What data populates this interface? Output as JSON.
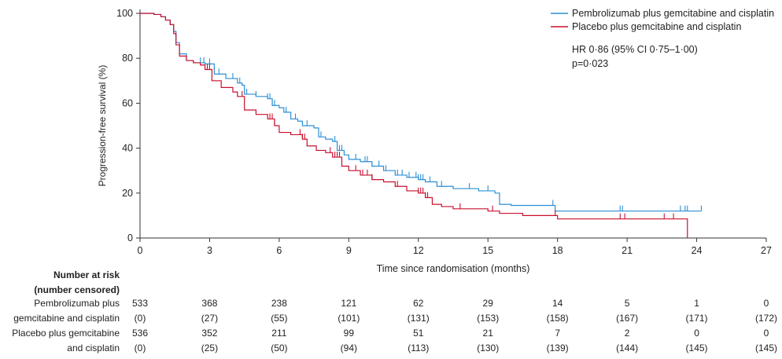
{
  "chart_data": {
    "type": "line",
    "ylabel": "Progression-free survival (%)",
    "xlabel": "Time since randomisation (months)",
    "xlim": [
      0,
      27
    ],
    "ylim": [
      0,
      100
    ],
    "xticks": [
      "0",
      "3",
      "6",
      "9",
      "12",
      "15",
      "18",
      "21",
      "24",
      "27"
    ],
    "yticks": [
      "0",
      "20",
      "40",
      "60",
      "80",
      "100"
    ],
    "legend_position": "top-right",
    "annotation_lines": [
      "HR 0·86 (95% CI 0·75–1·00)",
      "p=0·023"
    ],
    "series": [
      {
        "name": "Pembrolizumab plus gemcitabine and cisplatin",
        "color": "#2b8fd4",
        "points": [
          [
            0,
            100
          ],
          [
            0.6,
            99.5
          ],
          [
            0.9,
            98.5
          ],
          [
            1.1,
            97
          ],
          [
            1.3,
            95
          ],
          [
            1.45,
            92
          ],
          [
            1.55,
            87
          ],
          [
            1.7,
            82
          ],
          [
            2.0,
            79
          ],
          [
            2.3,
            78
          ],
          [
            2.8,
            77.5
          ],
          [
            3.2,
            73
          ],
          [
            3.7,
            71
          ],
          [
            4.2,
            69
          ],
          [
            4.4,
            68
          ],
          [
            4.5,
            64
          ],
          [
            5.0,
            63
          ],
          [
            5.5,
            62
          ],
          [
            5.7,
            59
          ],
          [
            6.0,
            58
          ],
          [
            6.2,
            56
          ],
          [
            6.5,
            53
          ],
          [
            6.8,
            52
          ],
          [
            7.0,
            50
          ],
          [
            7.5,
            49
          ],
          [
            7.7,
            45
          ],
          [
            8.0,
            44
          ],
          [
            8.3,
            43
          ],
          [
            8.5,
            39
          ],
          [
            8.8,
            37
          ],
          [
            9.0,
            35
          ],
          [
            9.5,
            34
          ],
          [
            10.0,
            32
          ],
          [
            10.5,
            30
          ],
          [
            11.0,
            28
          ],
          [
            11.5,
            27
          ],
          [
            12.0,
            26
          ],
          [
            12.3,
            25
          ],
          [
            12.8,
            23
          ],
          [
            13.5,
            22
          ],
          [
            14.0,
            22
          ],
          [
            14.6,
            21
          ],
          [
            15.3,
            20
          ],
          [
            15.5,
            15
          ],
          [
            16.0,
            14.5
          ],
          [
            17.5,
            14.5
          ],
          [
            17.9,
            12
          ],
          [
            20,
            12
          ],
          [
            24.2,
            12
          ]
        ],
        "censor_months": [
          2.6,
          2.75,
          3.0,
          3.4,
          4.0,
          4.3,
          4.6,
          5.0,
          5.5,
          5.6,
          5.7,
          5.8,
          6.3,
          6.7,
          7.2,
          7.8,
          8.4,
          8.6,
          8.7,
          9.3,
          9.7,
          9.8,
          10.3,
          10.6,
          11.1,
          11.3,
          11.6,
          11.9,
          12.0,
          12.1,
          12.2,
          12.5,
          13.0,
          14.2,
          15.0,
          17.8,
          20.7,
          20.8,
          23.3,
          23.5,
          23.6,
          24.2
        ]
      },
      {
        "name": "Placebo plus gemcitabine and cisplatin",
        "color": "#c8102e",
        "points": [
          [
            0,
            100
          ],
          [
            0.6,
            99.5
          ],
          [
            0.9,
            98.5
          ],
          [
            1.1,
            97
          ],
          [
            1.3,
            95
          ],
          [
            1.45,
            91
          ],
          [
            1.55,
            86
          ],
          [
            1.7,
            81
          ],
          [
            2.0,
            79
          ],
          [
            2.3,
            78
          ],
          [
            2.6,
            77
          ],
          [
            2.8,
            75
          ],
          [
            3.1,
            70
          ],
          [
            3.5,
            67
          ],
          [
            4.0,
            65
          ],
          [
            4.2,
            63
          ],
          [
            4.5,
            57
          ],
          [
            5.0,
            55
          ],
          [
            5.5,
            53
          ],
          [
            5.8,
            50
          ],
          [
            6.0,
            47
          ],
          [
            6.5,
            46
          ],
          [
            7.0,
            44
          ],
          [
            7.2,
            41
          ],
          [
            7.6,
            39
          ],
          [
            8.0,
            38
          ],
          [
            8.3,
            36
          ],
          [
            8.7,
            32
          ],
          [
            9.0,
            30
          ],
          [
            9.5,
            28
          ],
          [
            10.0,
            26
          ],
          [
            10.5,
            25
          ],
          [
            11.0,
            23
          ],
          [
            11.5,
            21
          ],
          [
            12.0,
            20
          ],
          [
            12.3,
            18
          ],
          [
            12.6,
            15
          ],
          [
            13.0,
            14
          ],
          [
            13.5,
            13
          ],
          [
            14.0,
            13
          ],
          [
            15.0,
            12
          ],
          [
            15.5,
            11
          ],
          [
            16.5,
            10
          ],
          [
            17.5,
            10
          ],
          [
            18.0,
            8.5
          ],
          [
            20.0,
            8.5
          ],
          [
            23.6,
            8.5
          ],
          [
            23.6,
            0
          ]
        ],
        "censor_months": [
          2.9,
          3.0,
          4.4,
          5.6,
          5.7,
          5.8,
          6.9,
          7.0,
          7.1,
          8.2,
          8.4,
          8.5,
          8.6,
          9.3,
          9.6,
          9.8,
          10.0,
          11.1,
          12.0,
          12.1,
          12.2,
          12.3,
          12.4,
          13.8,
          15.2,
          17.9,
          20.7,
          20.9,
          22.6,
          23.0
        ]
      }
    ]
  },
  "risk_table": {
    "title_line1": "Number at risk",
    "title_line2": "(number censored)",
    "months": [
      0,
      3,
      6,
      9,
      12,
      15,
      18,
      21,
      24,
      27
    ],
    "groups": [
      {
        "label_line1": "Pembrolizumab plus",
        "label_line2": "gemcitabine and cisplatin",
        "at_risk": [
          "533",
          "368",
          "238",
          "121",
          "62",
          "29",
          "14",
          "5",
          "1",
          "0"
        ],
        "censored": [
          "(0)",
          "(27)",
          "(55)",
          "(101)",
          "(131)",
          "(153)",
          "(158)",
          "(167)",
          "(171)",
          "(172)"
        ]
      },
      {
        "label_line1": "Placebo plus gemcitabine",
        "label_line2": "and cisplatin",
        "at_risk": [
          "536",
          "352",
          "211",
          "99",
          "51",
          "21",
          "7",
          "2",
          "0",
          "0"
        ],
        "censored": [
          "(0)",
          "(25)",
          "(50)",
          "(94)",
          "(113)",
          "(130)",
          "(139)",
          "(144)",
          "(145)",
          "(145)"
        ]
      }
    ]
  }
}
